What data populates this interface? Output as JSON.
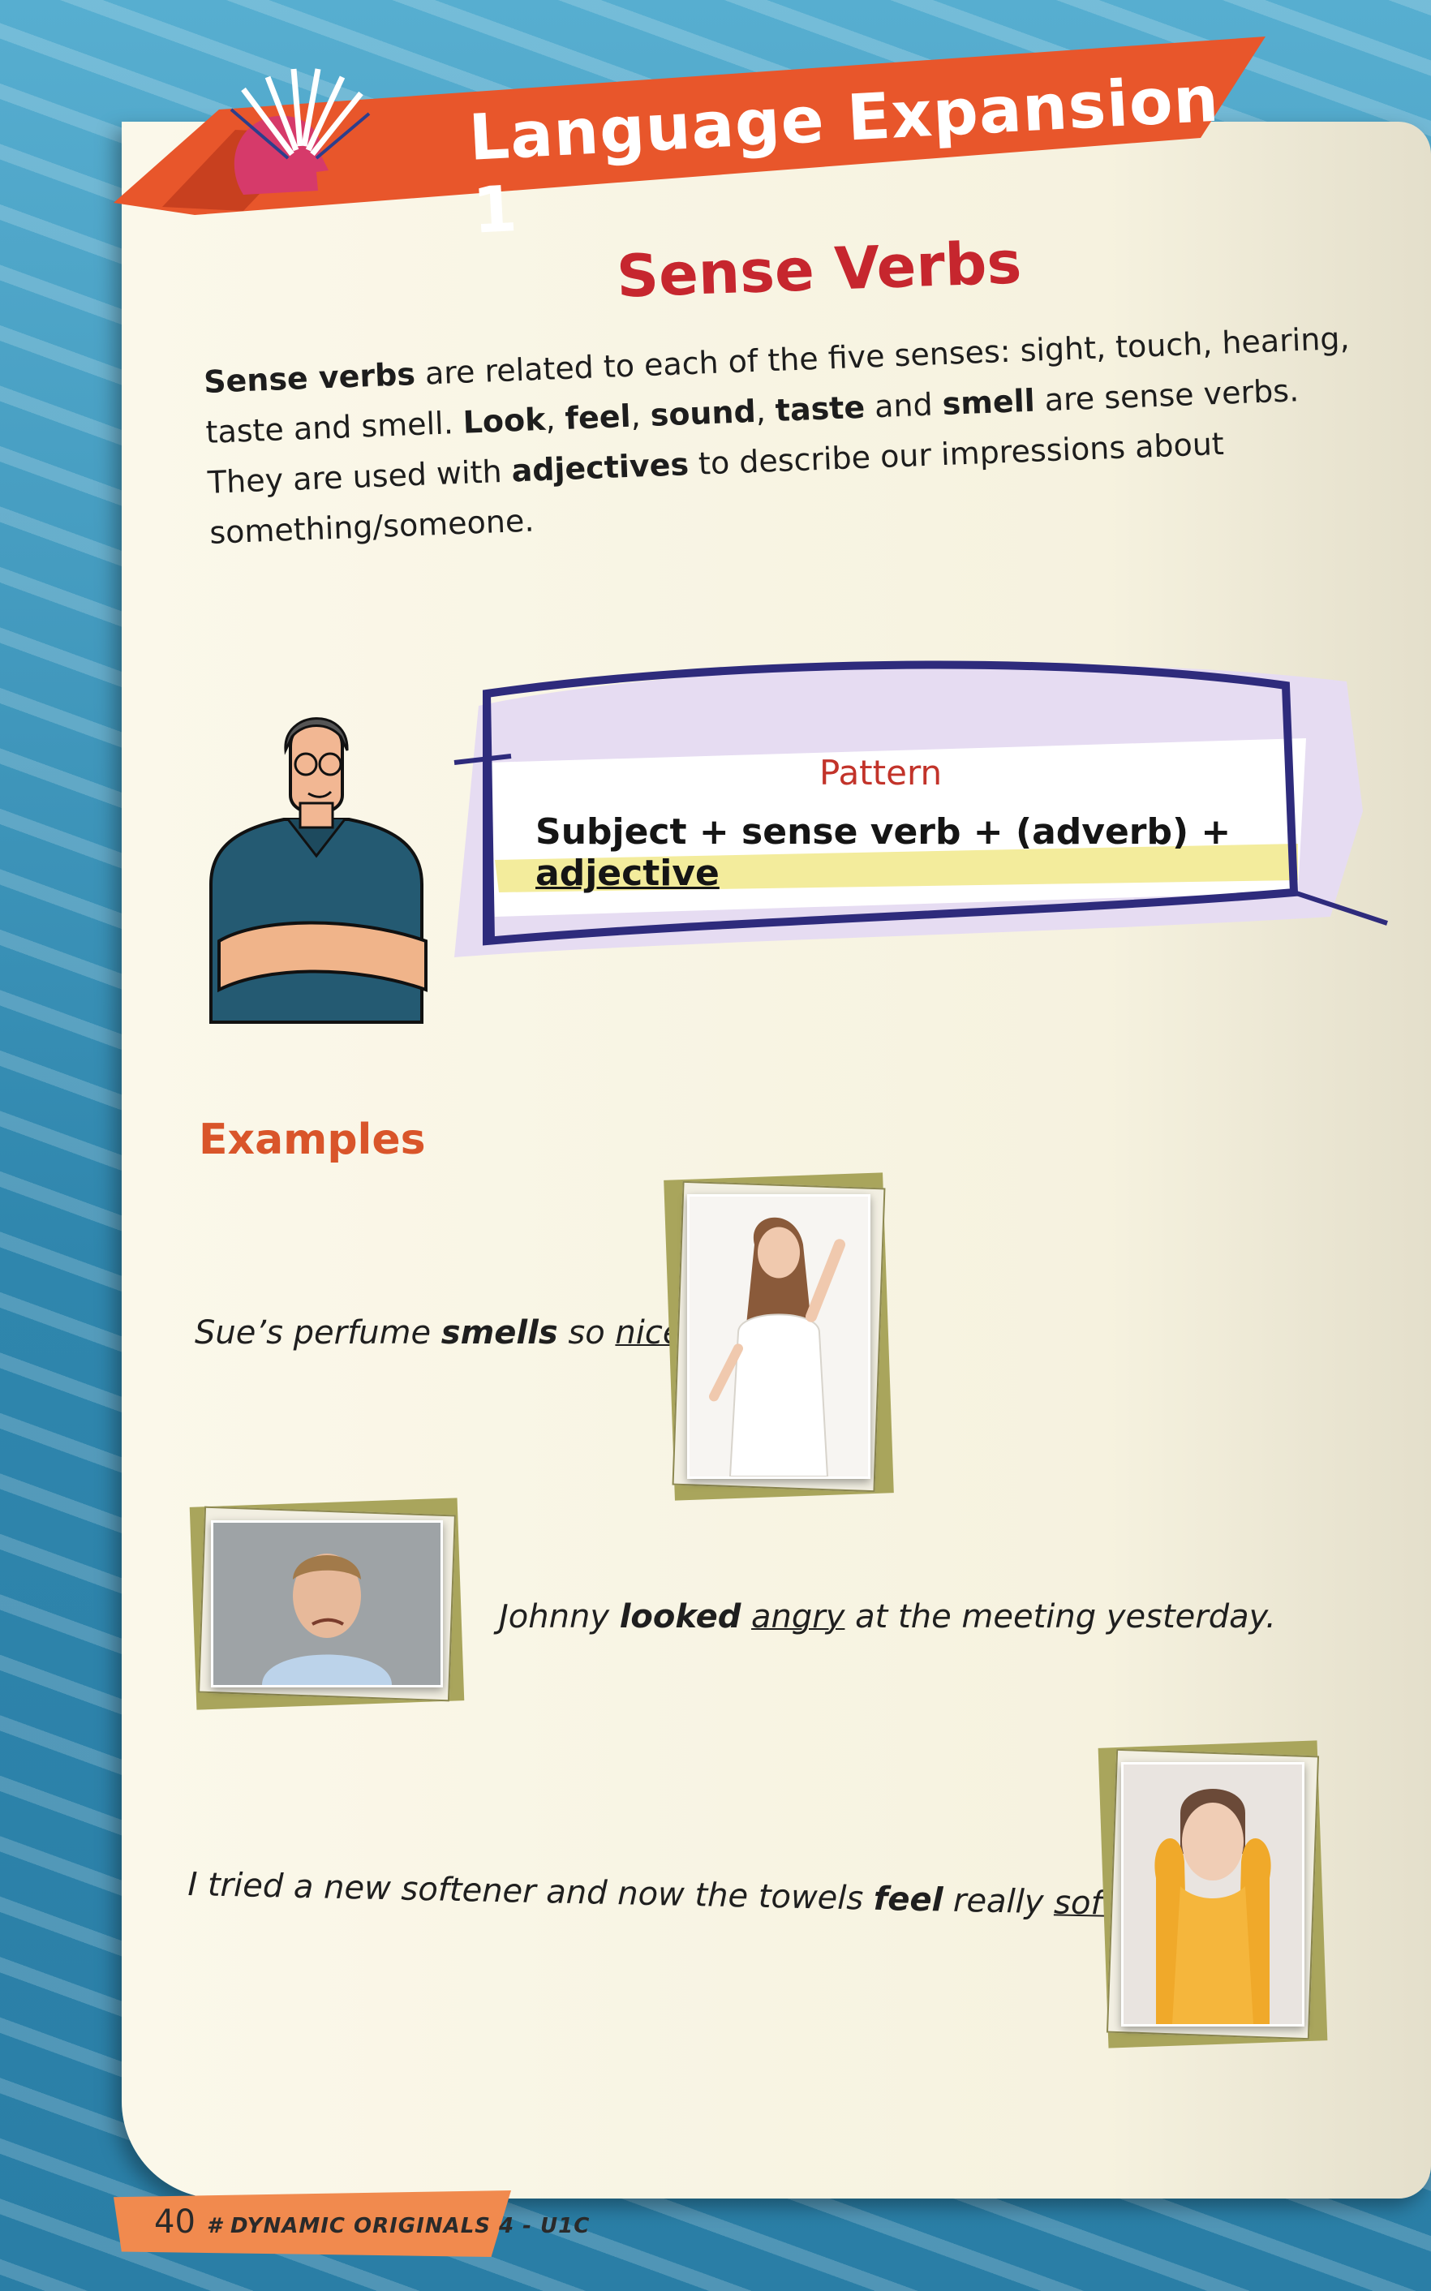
{
  "header": {
    "title": "Language Expansion 1",
    "accent": "#e8562b"
  },
  "section": {
    "title": "Sense Verbs"
  },
  "intro": {
    "p1_bold1": "Sense verbs",
    "p1_text1": " are related to each of the five senses: sight, touch, hearing, taste and smell. ",
    "p1_bold2": "Look",
    "p1_sep1": ", ",
    "p1_bold3": "feel",
    "p1_sep2": ", ",
    "p1_bold4": "sound",
    "p1_sep3": ", ",
    "p1_bold5": "taste",
    "p1_and": " and ",
    "p1_bold6": "smell",
    "p1_text2": " are sense verbs.",
    "p2_text1": "They are used with ",
    "p2_bold": "adjectives",
    "p2_text2": " to describe our impressions about something/someone."
  },
  "pattern": {
    "label": "Pattern",
    "formula_prefix": "Subject + sense verb + (adverb) + ",
    "formula_underlined": "adjective"
  },
  "examples": {
    "title": "Examples",
    "items": [
      {
        "pre": "Sue’s perfume ",
        "verb": "smells",
        "mid": " so ",
        "adj": "nice",
        "post": "."
      },
      {
        "pre": "Johnny ",
        "verb": "looked",
        "mid": " ",
        "adj": "angry",
        "post": " at the meeting yesterday."
      },
      {
        "pre": "I tried a new softener and now the towels ",
        "verb": "feel",
        "mid": " really ",
        "adj": "soft",
        "post": "."
      }
    ]
  },
  "footer": {
    "page_number": "40",
    "book": "# DYNAMIC ORIGINALS 4 - U1C"
  }
}
